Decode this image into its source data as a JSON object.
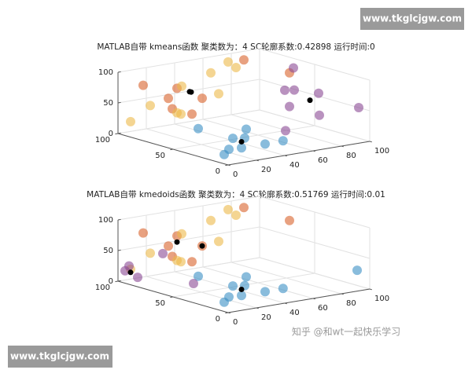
{
  "chart_data": [
    {
      "type": "scatter3d",
      "title": "MATLAB自带 kmeans函数  聚类数为：4  SC轮廓系数:0.42898 运行时间:0",
      "xlim": [
        0,
        100
      ],
      "xticks": [
        0,
        50,
        100
      ],
      "ylim": [
        0,
        100
      ],
      "yticks": [
        0,
        20,
        40,
        60,
        80,
        100
      ],
      "zlim": [
        0,
        100
      ],
      "zticks": [
        0,
        50,
        100
      ],
      "grid": true,
      "series": [
        {
          "color": "#3a8fc4",
          "x": [
            10,
            25,
            5,
            30,
            15,
            35,
            20,
            40,
            8
          ],
          "y": [
            5,
            20,
            30,
            35,
            15,
            40,
            25,
            10,
            45
          ],
          "z": [
            10,
            5,
            20,
            15,
            30,
            25,
            8,
            35,
            18
          ]
        },
        {
          "color": "#d9622b",
          "x": [
            80,
            85,
            70,
            90,
            75,
            60,
            95,
            65
          ],
          "y": [
            20,
            30,
            15,
            10,
            40,
            90,
            85,
            25
          ],
          "z": [
            60,
            70,
            50,
            80,
            55,
            85,
            90,
            40
          ]
        },
        {
          "color": "#edb94a",
          "x": [
            95,
            90,
            85,
            100,
            80,
            70,
            60,
            75,
            90
          ],
          "y": [
            5,
            15,
            30,
            45,
            50,
            60,
            40,
            25,
            70
          ],
          "z": [
            20,
            45,
            30,
            60,
            90,
            100,
            70,
            35,
            95
          ]
        },
        {
          "color": "#8a4a94",
          "x": [
            20,
            40,
            30,
            10,
            50,
            60,
            25,
            45
          ],
          "y": [
            80,
            95,
            70,
            100,
            85,
            90,
            60,
            75
          ],
          "z": [
            40,
            60,
            80,
            50,
            100,
            30,
            20,
            70
          ]
        },
        {
          "color": "#000000",
          "x": [
            20,
            80,
            85,
            35
          ],
          "y": [
            25,
            35,
            40,
            85
          ],
          "z": [
            18,
            65,
            60,
            55
          ]
        }
      ]
    },
    {
      "type": "scatter3d",
      "title": "MATLAB自带 kmedoids函数  聚类数为：4  SC轮廓系数:0.51769 运行时间:0.01",
      "xlim": [
        0,
        100
      ],
      "xticks": [
        0,
        50,
        100
      ],
      "ylim": [
        0,
        100
      ],
      "yticks": [
        0,
        20,
        40,
        60,
        80,
        100
      ],
      "zlim": [
        0,
        100
      ],
      "zticks": [
        0,
        50,
        100
      ],
      "grid": true,
      "series": [
        {
          "color": "#3a8fc4",
          "x": [
            10,
            25,
            5,
            30,
            15,
            35,
            20,
            40,
            8,
            5
          ],
          "y": [
            5,
            20,
            30,
            35,
            15,
            40,
            25,
            10,
            45,
            95
          ],
          "z": [
            10,
            5,
            20,
            15,
            30,
            25,
            8,
            35,
            18,
            30
          ]
        },
        {
          "color": "#d9622b",
          "x": [
            80,
            85,
            70,
            90,
            75,
            60,
            95,
            65
          ],
          "y": [
            20,
            30,
            15,
            10,
            40,
            90,
            85,
            25
          ],
          "z": [
            60,
            70,
            50,
            80,
            55,
            85,
            90,
            40
          ]
        },
        {
          "color": "#edb94a",
          "x": [
            95,
            90,
            85,
            100,
            80,
            70,
            60,
            75,
            90
          ],
          "y": [
            5,
            15,
            30,
            45,
            50,
            60,
            40,
            25,
            70
          ],
          "z": [
            20,
            45,
            30,
            60,
            90,
            100,
            70,
            35,
            95
          ]
        },
        {
          "color": "#8a4a94",
          "x": [
            90,
            100,
            95,
            70,
            85
          ],
          "y": [
            0,
            5,
            10,
            30,
            20
          ],
          "z": [
            30,
            15,
            5,
            0,
            45
          ]
        },
        {
          "color": "#000000",
          "x": [
            20,
            75,
            85,
            95
          ],
          "y": [
            25,
            40,
            30,
            5
          ],
          "z": [
            18,
            55,
            60,
            15
          ]
        }
      ]
    }
  ],
  "watermarks": [
    "www.tkglcjgw.com",
    "www.tkglcjgw.com",
    "知乎 @和wt一起快乐学习"
  ]
}
